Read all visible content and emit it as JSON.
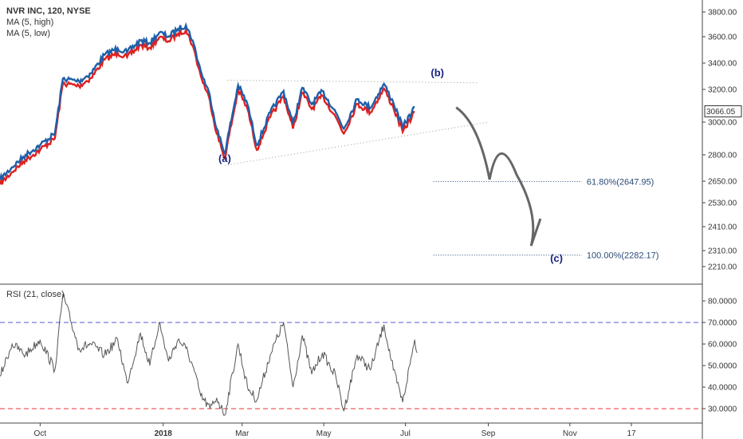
{
  "chart_data": {
    "type": "line",
    "title": "NVR INC, 120, NYSE",
    "legend": [
      "MA (5, high)",
      "MA (5, low)"
    ],
    "colors": {
      "ma_high": "#1f5fa8",
      "ma_low": "#e02020",
      "rsi": "#555555",
      "guide": "#999999",
      "fib": "#2b4a78",
      "arrow": "#666666",
      "upper_band": "#5555dd",
      "lower_band": "#ee3333"
    },
    "price_axis": {
      "ylim": [
        2150,
        3850
      ],
      "ticks": [
        "3800.00",
        "3600.00",
        "3400.00",
        "3200.00",
        "3000.00",
        "2800.00",
        "2650.00",
        "2530.00",
        "2410.00",
        "2310.00",
        "2210.00"
      ]
    },
    "last_price": "3066.05",
    "x_axis": {
      "ticks": [
        "Oct",
        "2018",
        "Mar",
        "May",
        "Jul",
        "Sep",
        "Nov",
        "17"
      ]
    },
    "ma_series_path": [
      [
        "2017-09-01",
        2650
      ],
      [
        "2017-09-10",
        2720
      ],
      [
        "2017-09-20",
        2790
      ],
      [
        "2017-10-01",
        2850
      ],
      [
        "2017-10-12",
        2920
      ],
      [
        "2017-10-18",
        3270
      ],
      [
        "2017-10-30",
        3250
      ],
      [
        "2017-11-08",
        3310
      ],
      [
        "2017-11-18",
        3450
      ],
      [
        "2017-11-28",
        3500
      ],
      [
        "2017-12-05",
        3470
      ],
      [
        "2017-12-15",
        3560
      ],
      [
        "2017-12-22",
        3540
      ],
      [
        "2017-12-29",
        3620
      ],
      [
        "2018-01-05",
        3590
      ],
      [
        "2018-01-12",
        3650
      ],
      [
        "2018-01-18",
        3680
      ],
      [
        "2018-01-23",
        3560
      ],
      [
        "2018-01-29",
        3330
      ],
      [
        "2018-02-05",
        3150
      ],
      [
        "2018-02-10",
        2950
      ],
      [
        "2018-02-16",
        2800
      ],
      [
        "2018-02-26",
        3220
      ],
      [
        "2018-03-05",
        3100
      ],
      [
        "2018-03-12",
        2850
      ],
      [
        "2018-03-22",
        3050
      ],
      [
        "2018-04-01",
        3180
      ],
      [
        "2018-04-08",
        2980
      ],
      [
        "2018-04-15",
        3200
      ],
      [
        "2018-04-22",
        3100
      ],
      [
        "2018-04-30",
        3180
      ],
      [
        "2018-05-10",
        3050
      ],
      [
        "2018-05-16",
        2950
      ],
      [
        "2018-05-26",
        3130
      ],
      [
        "2018-06-05",
        3080
      ],
      [
        "2018-06-15",
        3230
      ],
      [
        "2018-06-22",
        3110
      ],
      [
        "2018-06-29",
        2960
      ],
      [
        "2018-07-08",
        3080
      ]
    ],
    "rsi": {
      "label": "RSI (21, close)",
      "ylim": [
        25,
        85
      ],
      "ticks": [
        "80.0000",
        "70.0000",
        "60.0000",
        "50.0000",
        "40.0000",
        "30.0000"
      ],
      "upper_band": 70,
      "lower_band": 30,
      "path": [
        [
          "2017-09-01",
          45
        ],
        [
          "2017-09-10",
          60
        ],
        [
          "2017-09-20",
          55
        ],
        [
          "2017-10-01",
          62
        ],
        [
          "2017-10-12",
          48
        ],
        [
          "2017-10-18",
          83
        ],
        [
          "2017-10-30",
          58
        ],
        [
          "2017-11-08",
          60
        ],
        [
          "2017-11-18",
          55
        ],
        [
          "2017-11-28",
          62
        ],
        [
          "2017-12-05",
          42
        ],
        [
          "2017-12-15",
          65
        ],
        [
          "2017-12-22",
          50
        ],
        [
          "2017-12-29",
          70
        ],
        [
          "2018-01-05",
          52
        ],
        [
          "2018-01-12",
          62
        ],
        [
          "2018-01-18",
          58
        ],
        [
          "2018-01-23",
          50
        ],
        [
          "2018-01-29",
          36
        ],
        [
          "2018-02-05",
          30
        ],
        [
          "2018-02-10",
          35
        ],
        [
          "2018-02-16",
          27
        ],
        [
          "2018-02-26",
          60
        ],
        [
          "2018-03-05",
          40
        ],
        [
          "2018-03-12",
          34
        ],
        [
          "2018-03-22",
          55
        ],
        [
          "2018-04-01",
          70
        ],
        [
          "2018-04-08",
          40
        ],
        [
          "2018-04-15",
          64
        ],
        [
          "2018-04-22",
          46
        ],
        [
          "2018-04-30",
          56
        ],
        [
          "2018-05-10",
          45
        ],
        [
          "2018-05-16",
          29
        ],
        [
          "2018-05-26",
          55
        ],
        [
          "2018-06-05",
          48
        ],
        [
          "2018-06-15",
          69
        ],
        [
          "2018-06-22",
          48
        ],
        [
          "2018-06-29",
          33
        ],
        [
          "2018-07-08",
          62
        ],
        [
          "2018-07-10",
          56
        ]
      ]
    },
    "annotations": {
      "wave_a": {
        "label": "(a)",
        "date": "2018-02-16",
        "price": 2760
      },
      "wave_b": {
        "label": "(b)",
        "date": "2018-07-25",
        "price": 3300
      },
      "wave_c": {
        "label": "(c)",
        "date": "2018-10-22",
        "price": 2240
      },
      "triangle_upper": [
        [
          "2018-02-18",
          3270
        ],
        [
          "2018-08-25",
          3250
        ]
      ],
      "triangle_lower": [
        [
          "2018-02-16",
          2740
        ],
        [
          "2018-09-01",
          3000
        ]
      ],
      "fib_61": {
        "label": "61.80%(2647.95)",
        "price": 2647.95,
        "from": "2018-07-22",
        "to": "2018-11-10"
      },
      "fib_100": {
        "label": "100.00%(2282.17)",
        "price": 2282.17,
        "from": "2018-07-22",
        "to": "2018-11-10"
      },
      "projection_path": [
        [
          "2018-08-08",
          3090
        ],
        [
          "2018-08-25",
          2870
        ],
        [
          "2018-09-02",
          2660
        ],
        [
          "2018-09-12",
          2780
        ],
        [
          "2018-09-22",
          2690
        ],
        [
          "2018-10-03",
          2330
        ],
        [
          "2018-10-10",
          2450
        ]
      ]
    }
  }
}
